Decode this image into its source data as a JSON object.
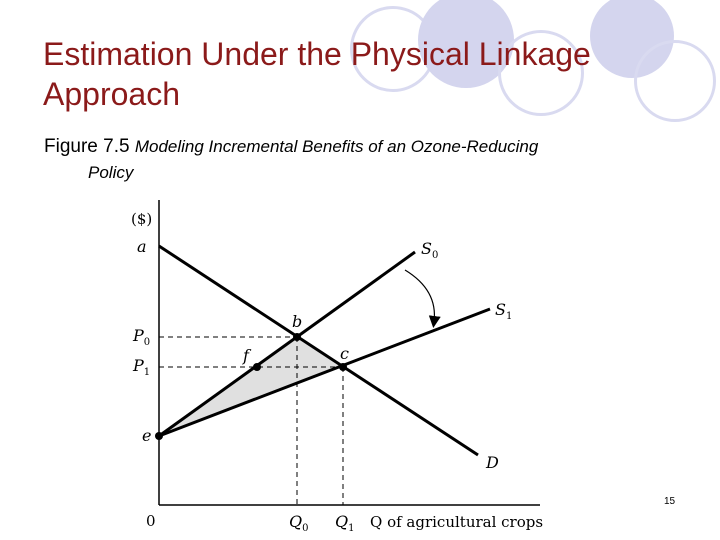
{
  "slide": {
    "title": "Estimation Under the Physical Linkage Approach",
    "caption_figure": "Figure 7.5",
    "caption_text_1": "Modeling Incremental Benefits of an Ozone-Reducing",
    "caption_text_2": "Policy",
    "slide_number": "15"
  },
  "diagram": {
    "y_axis_label": "($)",
    "x_axis_label": "Q of agricultural crops",
    "origin_label": "0",
    "price_labels": {
      "a": "a",
      "p0": "P",
      "p0_sub": "0",
      "p1": "P",
      "p1_sub": "1",
      "e": "e"
    },
    "quantity_labels": {
      "q0": "Q",
      "q0_sub": "0",
      "q1": "Q",
      "q1_sub": "1"
    },
    "curve_labels": {
      "s0": "S",
      "s0_sub": "0",
      "s1": "S",
      "s1_sub": "1",
      "d": "D"
    },
    "point_labels": {
      "b": "b",
      "c": "c",
      "f": "f"
    },
    "colors": {
      "line": "#000000",
      "shaded_area": "#e0e0e0",
      "title": "#8b1a1a"
    }
  }
}
